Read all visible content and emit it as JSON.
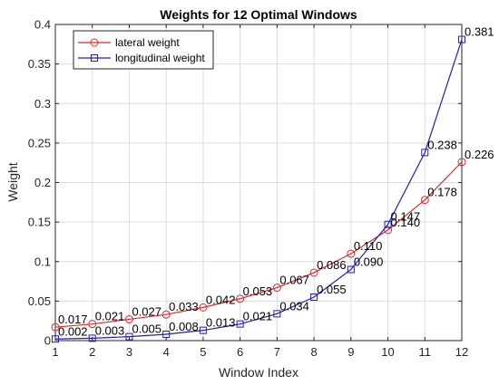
{
  "chart_data": {
    "type": "line",
    "title": "Weights for 12 Optimal Windows",
    "xlabel": "Window Index",
    "ylabel": "Weight",
    "x": [
      1,
      2,
      3,
      4,
      5,
      6,
      7,
      8,
      9,
      10,
      11,
      12
    ],
    "xlim": [
      1,
      12
    ],
    "ylim": [
      0,
      0.4
    ],
    "xticks": [
      "1",
      "2",
      "3",
      "4",
      "5",
      "6",
      "7",
      "8",
      "9",
      "10",
      "11",
      "12"
    ],
    "yticks": [
      "0",
      "0.05",
      "0.1",
      "0.15",
      "0.2",
      "0.25",
      "0.3",
      "0.35",
      "0.4"
    ],
    "grid": true,
    "legend_position": "top-left",
    "series": [
      {
        "name": "lateral weight",
        "color": "#e8262a",
        "marker": "circle",
        "values": [
          0.017,
          0.021,
          0.027,
          0.033,
          0.042,
          0.053,
          0.067,
          0.086,
          0.11,
          0.14,
          0.178,
          0.226
        ],
        "labels": [
          "0.017",
          "0.021",
          "0.027",
          "0.033",
          "0.042",
          "0.053",
          "0.067",
          "0.086",
          "0.110",
          "0.140",
          "0.178",
          "0.226"
        ]
      },
      {
        "name": "longitudinal weight",
        "color": "#1f1fbf",
        "marker": "square",
        "values": [
          0.002,
          0.003,
          0.005,
          0.008,
          0.013,
          0.021,
          0.034,
          0.055,
          0.09,
          0.147,
          0.238,
          0.381
        ],
        "labels": [
          "0.002",
          "0.003",
          "0.005",
          "0.008",
          "0.013",
          "0.021",
          "0.034",
          "0.055",
          "0.090",
          "0.147",
          "0.238",
          "0.381"
        ]
      }
    ]
  }
}
